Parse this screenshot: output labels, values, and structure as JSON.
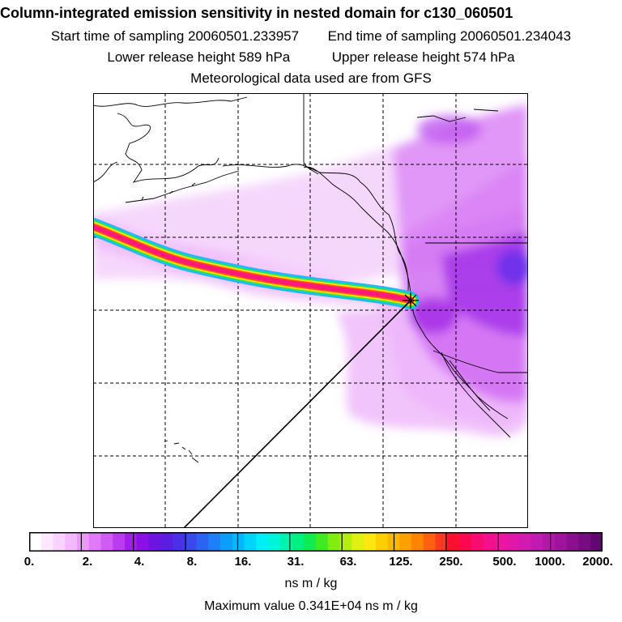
{
  "header": {
    "title": "Column-integrated emission sensitivity in nested domain for c130_060501",
    "start_label": "Start time of sampling 20060501.233957",
    "end_label": "End time of sampling 20060501.234043",
    "lower_label": "Lower release height  589 hPa",
    "upper_label": "Upper release height  574 hPa",
    "met_label": "Meteorological data used are from GFS"
  },
  "colorbar": {
    "tick_labels": [
      "0.",
      "2.",
      "4.",
      "8.",
      "16.",
      "31.",
      "63.",
      "125.",
      "250.",
      "500.",
      "1000.",
      "2000."
    ],
    "colors": [
      "#ffffff",
      "#fde8ff",
      "#f9d2fe",
      "#f4b8fd",
      "#ec98fb",
      "#e07af8",
      "#d15cf4",
      "#bb3cef",
      "#a21fea",
      "#8a10e6",
      "#6e14e0",
      "#5a1ee0",
      "#4a30e6",
      "#3a48ec",
      "#2c64f2",
      "#1e80f6",
      "#0e9cfa",
      "#00b8fc",
      "#00d4fc",
      "#00eef6",
      "#00f4d8",
      "#00f4b0",
      "#00f080",
      "#10ec50",
      "#40ea20",
      "#80ec10",
      "#b4ee10",
      "#e0f010",
      "#fce810",
      "#fcd000",
      "#fcb800",
      "#fca000",
      "#fc8400",
      "#fc6010",
      "#fc3a20",
      "#fc1030",
      "#fc0850",
      "#f80c70",
      "#f4108c",
      "#ec14a0",
      "#e018aa",
      "#d01ab0",
      "#c01ab0",
      "#b018a8",
      "#9e149c",
      "#8a1090",
      "#760c80",
      "#600870"
    ],
    "units": "ns m / kg"
  },
  "footer": {
    "max_value_label": "Maximum value  0.341E+04 ns m / kg"
  },
  "marker": {
    "symbol": "receptor-star"
  },
  "colors": {
    "plume_core": "#ff1a7a",
    "plume_yellow": "#ffe000",
    "plume_green": "#00e070",
    "plume_cyan": "#00c8ff",
    "sensitivity_low": "#f2c6fb",
    "sensitivity_mid": "#cc55ee",
    "sensitivity_high": "#9a20e6"
  }
}
